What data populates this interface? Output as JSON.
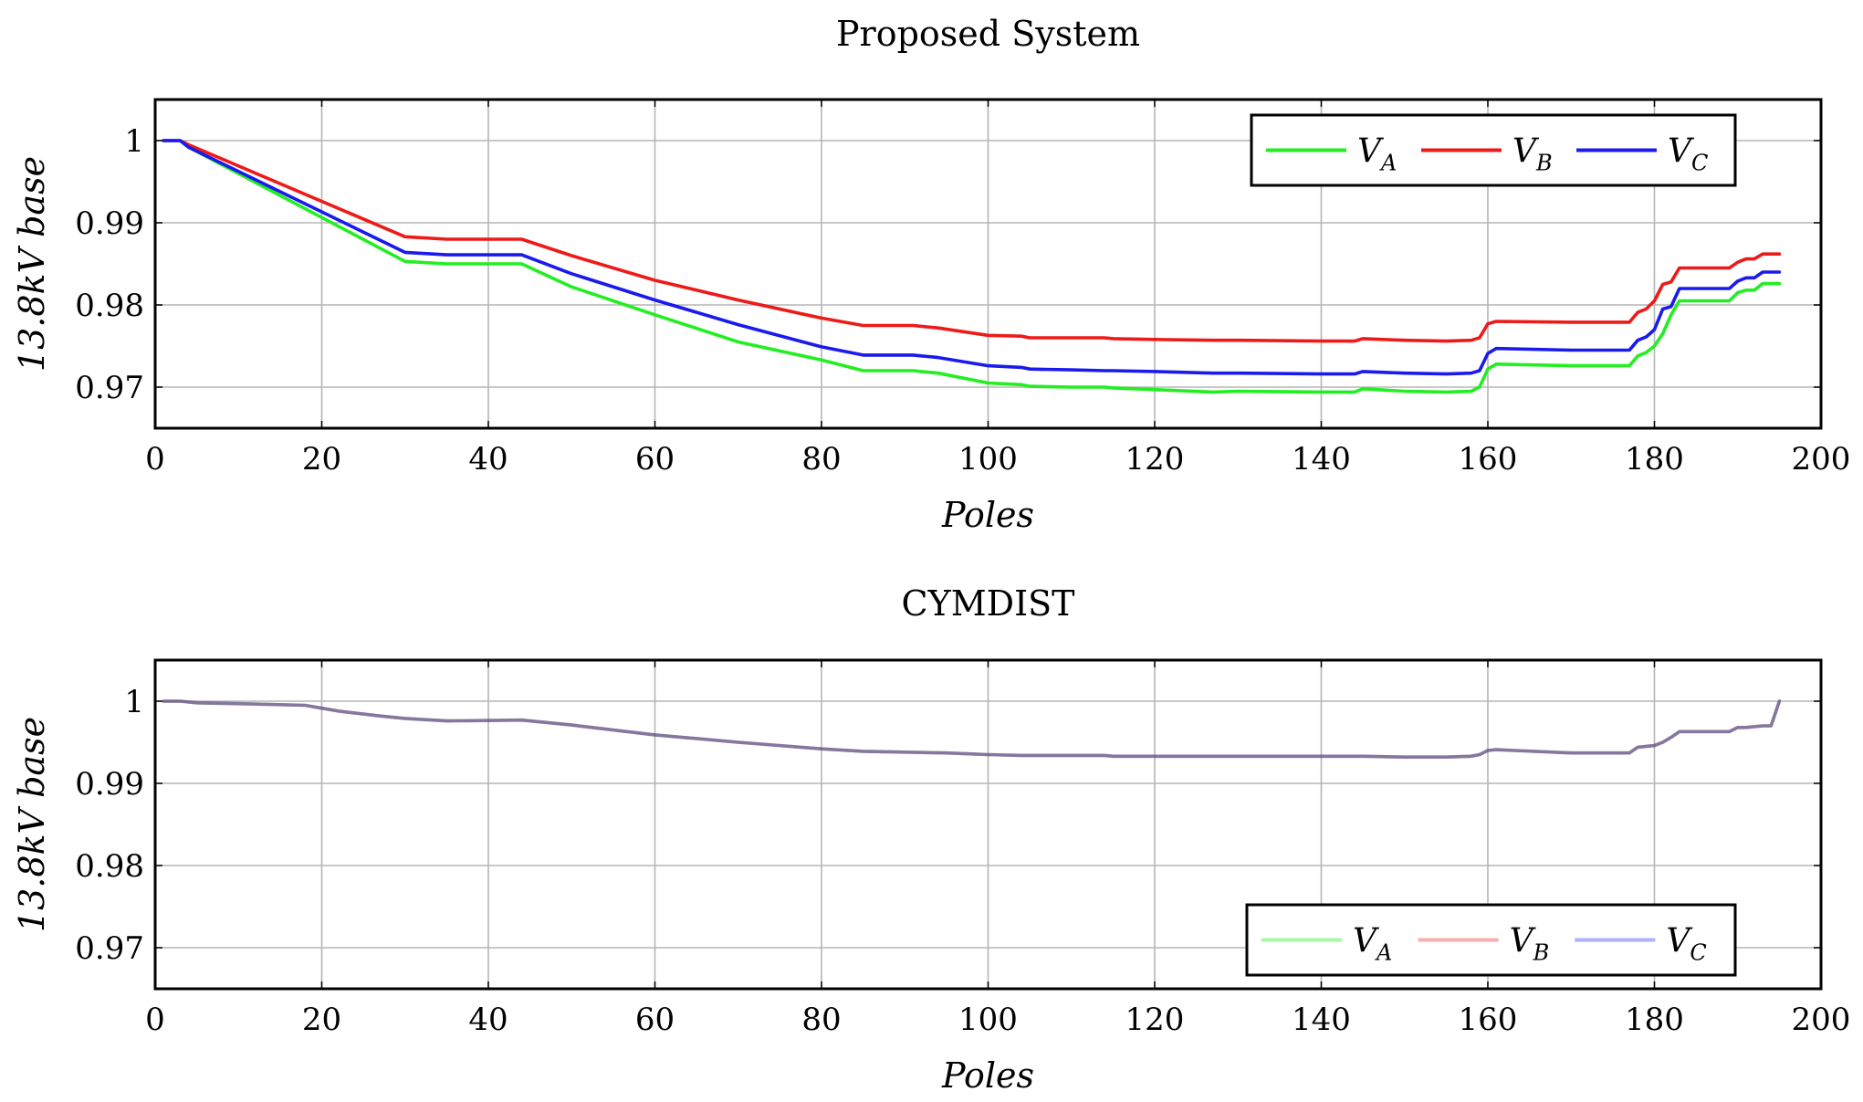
{
  "charts": [
    {
      "id": "proposed",
      "title": "Proposed System",
      "type": "line",
      "xlabel": "Poles",
      "ylabel": "13.8kV base",
      "xlim": [
        0,
        200
      ],
      "ylim": [
        0.965,
        1.005
      ],
      "xticks": [
        0,
        20,
        40,
        60,
        80,
        100,
        120,
        140,
        160,
        180,
        200
      ],
      "yticks": [
        0.97,
        0.98,
        0.99,
        1
      ],
      "ytick_labels": [
        "0.97",
        "0.98",
        "0.99",
        "1"
      ],
      "grid": true,
      "legend_position": "top-right",
      "series": [
        {
          "name": "V",
          "subscript": "A",
          "color": "#22ee22",
          "opacity": 1,
          "x": [
            1,
            3,
            4,
            30,
            35,
            44,
            50,
            60,
            70,
            80,
            85,
            91,
            94,
            100,
            104,
            105,
            110,
            114,
            115,
            120,
            127,
            130,
            140,
            144,
            145,
            150,
            155,
            158,
            159,
            160,
            161,
            170,
            177,
            178,
            179,
            180,
            181,
            182,
            183,
            187,
            189,
            190,
            191,
            192,
            193,
            194,
            195
          ],
          "y": [
            1.0,
            1.0,
            0.9992,
            0.9853,
            0.985,
            0.985,
            0.9822,
            0.9788,
            0.9755,
            0.9733,
            0.972,
            0.972,
            0.9717,
            0.9705,
            0.9703,
            0.9701,
            0.97,
            0.97,
            0.9699,
            0.9697,
            0.9694,
            0.9695,
            0.9694,
            0.9694,
            0.9698,
            0.9695,
            0.9694,
            0.9695,
            0.97,
            0.9722,
            0.9728,
            0.9726,
            0.9726,
            0.9738,
            0.9742,
            0.975,
            0.9765,
            0.9788,
            0.9805,
            0.9805,
            0.9805,
            0.9815,
            0.9818,
            0.9818,
            0.9826,
            0.9826,
            0.9826
          ]
        },
        {
          "name": "V",
          "subscript": "B",
          "color": "#ee1a1a",
          "opacity": 1,
          "x": [
            1,
            3,
            4,
            30,
            35,
            44,
            50,
            60,
            70,
            80,
            85,
            91,
            94,
            100,
            104,
            105,
            110,
            114,
            115,
            120,
            127,
            130,
            140,
            144,
            145,
            150,
            155,
            158,
            159,
            160,
            161,
            170,
            177,
            178,
            179,
            180,
            181,
            182,
            183,
            187,
            189,
            190,
            191,
            192,
            193,
            194,
            195
          ],
          "y": [
            1.0,
            1.0,
            0.9995,
            0.9883,
            0.988,
            0.988,
            0.986,
            0.983,
            0.9806,
            0.9784,
            0.9775,
            0.9775,
            0.9772,
            0.9763,
            0.9762,
            0.976,
            0.976,
            0.976,
            0.9759,
            0.9758,
            0.9757,
            0.9757,
            0.9756,
            0.9756,
            0.9759,
            0.9757,
            0.9756,
            0.9757,
            0.976,
            0.9777,
            0.978,
            0.9779,
            0.9779,
            0.9791,
            0.9795,
            0.9805,
            0.9825,
            0.9828,
            0.9845,
            0.9845,
            0.9845,
            0.9852,
            0.9856,
            0.9856,
            0.9862,
            0.9862,
            0.9862
          ]
        },
        {
          "name": "V",
          "subscript": "C",
          "color": "#1a1aee",
          "opacity": 1,
          "x": [
            1,
            3,
            4,
            30,
            35,
            44,
            50,
            60,
            70,
            80,
            85,
            91,
            94,
            100,
            104,
            105,
            110,
            114,
            115,
            120,
            127,
            130,
            140,
            144,
            145,
            150,
            155,
            158,
            159,
            160,
            161,
            170,
            177,
            178,
            179,
            180,
            181,
            182,
            183,
            187,
            189,
            190,
            191,
            192,
            193,
            194,
            195
          ],
          "y": [
            1.0,
            1.0,
            0.9992,
            0.9864,
            0.9861,
            0.9861,
            0.9838,
            0.9806,
            0.9776,
            0.9749,
            0.9739,
            0.9739,
            0.9736,
            0.9726,
            0.9724,
            0.9722,
            0.9721,
            0.972,
            0.972,
            0.9719,
            0.9717,
            0.9717,
            0.9716,
            0.9716,
            0.9719,
            0.9717,
            0.9716,
            0.9717,
            0.972,
            0.9741,
            0.9747,
            0.9745,
            0.9745,
            0.9757,
            0.9761,
            0.977,
            0.9795,
            0.9798,
            0.982,
            0.982,
            0.982,
            0.9829,
            0.9833,
            0.9833,
            0.984,
            0.984,
            0.984
          ]
        }
      ]
    },
    {
      "id": "cymdist",
      "title": "CYMDIST",
      "type": "line",
      "xlabel": "Poles",
      "ylabel": "13.8kV base",
      "xlim": [
        0,
        200
      ],
      "ylim": [
        0.965,
        1.005
      ],
      "xticks": [
        0,
        20,
        40,
        60,
        80,
        100,
        120,
        140,
        160,
        180,
        200
      ],
      "yticks": [
        0.97,
        0.98,
        0.99,
        1
      ],
      "ytick_labels": [
        "0.97",
        "0.98",
        "0.99",
        "1"
      ],
      "grid": true,
      "legend_position": "bottom-right",
      "series": [
        {
          "name": "V",
          "subscript": "A",
          "color": "#22ee22",
          "opacity": 0.4,
          "x": [
            1,
            3,
            5,
            10,
            18,
            22,
            27,
            30,
            35,
            44,
            50,
            60,
            70,
            80,
            85,
            90,
            95,
            100,
            104,
            105,
            110,
            114,
            115,
            120,
            130,
            140,
            144,
            145,
            150,
            155,
            158,
            159,
            160,
            161,
            170,
            175,
            177,
            178,
            180,
            181,
            182,
            183,
            189,
            190,
            191,
            193,
            194,
            195
          ],
          "y": [
            1.0,
            1.0,
            0.9998,
            0.9997,
            0.9995,
            0.9988,
            0.9982,
            0.9979,
            0.9976,
            0.9977,
            0.9971,
            0.9959,
            0.995,
            0.9942,
            0.9939,
            0.9938,
            0.9937,
            0.9935,
            0.9934,
            0.9934,
            0.9934,
            0.9934,
            0.9933,
            0.9933,
            0.9933,
            0.9933,
            0.9933,
            0.9933,
            0.9932,
            0.9932,
            0.9933,
            0.9935,
            0.994,
            0.9941,
            0.9937,
            0.9937,
            0.9937,
            0.9944,
            0.9946,
            0.995,
            0.9956,
            0.9963,
            0.9963,
            0.9968,
            0.9968,
            0.997,
            0.997,
            1.0
          ]
        },
        {
          "name": "V",
          "subscript": "B",
          "color": "#ee1a1a",
          "opacity": 0.35,
          "x": [
            1,
            3,
            5,
            10,
            18,
            22,
            27,
            30,
            35,
            44,
            50,
            60,
            70,
            80,
            85,
            90,
            95,
            100,
            104,
            105,
            110,
            114,
            115,
            120,
            130,
            140,
            144,
            145,
            150,
            155,
            158,
            159,
            160,
            161,
            170,
            175,
            177,
            178,
            180,
            181,
            182,
            183,
            189,
            190,
            191,
            193,
            194,
            195
          ],
          "y": [
            1.0,
            1.0,
            0.9998,
            0.9997,
            0.9995,
            0.9988,
            0.9982,
            0.9979,
            0.9976,
            0.9977,
            0.9971,
            0.9959,
            0.995,
            0.9942,
            0.9939,
            0.9938,
            0.9937,
            0.9935,
            0.9934,
            0.9934,
            0.9934,
            0.9934,
            0.9933,
            0.9933,
            0.9933,
            0.9933,
            0.9933,
            0.9933,
            0.9932,
            0.9932,
            0.9933,
            0.9935,
            0.994,
            0.9941,
            0.9937,
            0.9937,
            0.9937,
            0.9944,
            0.9946,
            0.995,
            0.9956,
            0.9963,
            0.9963,
            0.9968,
            0.9968,
            0.997,
            0.997,
            1.0
          ]
        },
        {
          "name": "V",
          "subscript": "C",
          "color": "#1a1aee",
          "opacity": 0.35,
          "x": [
            1,
            3,
            5,
            10,
            18,
            22,
            27,
            30,
            35,
            44,
            50,
            60,
            70,
            80,
            85,
            90,
            95,
            100,
            104,
            105,
            110,
            114,
            115,
            120,
            130,
            140,
            144,
            145,
            150,
            155,
            158,
            159,
            160,
            161,
            170,
            175,
            177,
            178,
            180,
            181,
            182,
            183,
            189,
            190,
            191,
            193,
            194,
            195
          ],
          "y": [
            1.0,
            1.0,
            0.9998,
            0.9997,
            0.9995,
            0.9988,
            0.9982,
            0.9979,
            0.9976,
            0.9977,
            0.9971,
            0.9959,
            0.995,
            0.9942,
            0.9939,
            0.9938,
            0.9937,
            0.9935,
            0.9934,
            0.9934,
            0.9934,
            0.9934,
            0.9933,
            0.9933,
            0.9933,
            0.9933,
            0.9933,
            0.9933,
            0.9932,
            0.9932,
            0.9933,
            0.9935,
            0.994,
            0.9941,
            0.9937,
            0.9937,
            0.9937,
            0.9944,
            0.9946,
            0.995,
            0.9956,
            0.9963,
            0.9963,
            0.9968,
            0.9968,
            0.997,
            0.997,
            1.0
          ]
        }
      ]
    }
  ]
}
